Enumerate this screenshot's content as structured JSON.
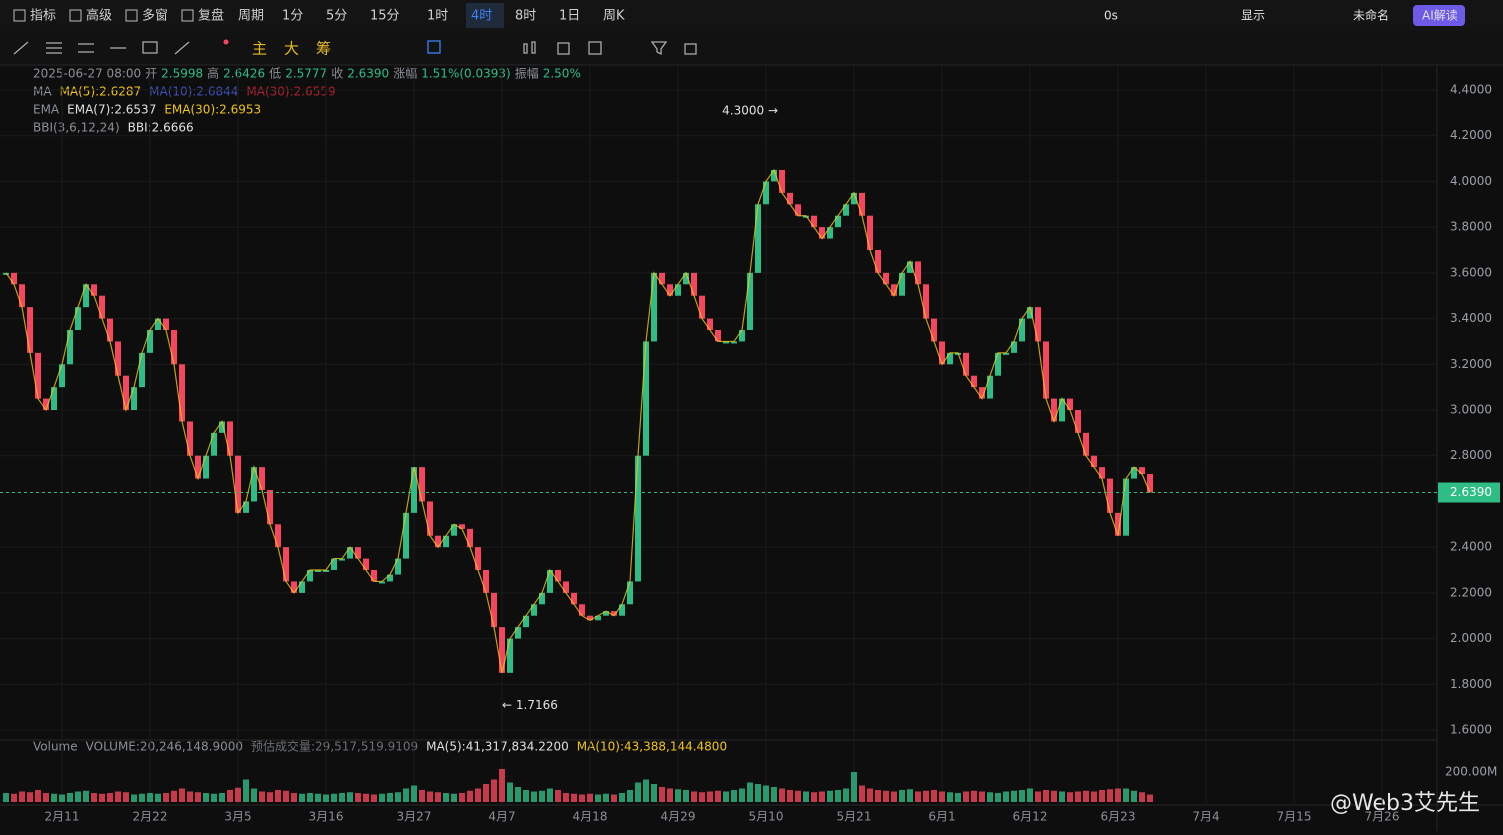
{
  "toolbar": {
    "left": [
      "指标",
      "高级",
      "多窗",
      "复盘",
      "周期",
      "1分",
      "5分",
      "15分",
      "1时",
      "4时",
      "8时",
      "1日",
      "周K"
    ],
    "active": "4时",
    "right": [
      "0s",
      "显示",
      "未命名",
      "AI解读"
    ]
  },
  "tools": {
    "main": [
      "主",
      "大",
      "筹"
    ]
  },
  "legend": {
    "ohlc": [
      "2025-06-27 08:00",
      "开",
      "2.5998",
      "高",
      "2.6426",
      "低",
      "2.5777",
      "收",
      "2.6390",
      "涨幅",
      "1.51%(0.0393)",
      "振幅",
      "2.50%"
    ],
    "ma": [
      "MA",
      "MA(5):2.6287",
      "MA(10):2.6844",
      "MA(30):2.6559"
    ],
    "ema": [
      "EMA",
      "EMA(7):2.6537",
      "EMA(30):2.6953"
    ],
    "bbi": [
      "BBI(3,6,12,24)",
      "BBI:2.6666"
    ],
    "volume": [
      "Volume",
      "VOLUME:20,246,148.9000",
      "预估成交量:29,517,519.9109",
      "MA(5):41,317,834.2200",
      "MA(10):43,388,144.4800"
    ]
  },
  "watermark": "@Web3艾先生",
  "chart_data": {
    "type": "candle-line",
    "categories": [
      null,
      null,
      null,
      null,
      null,
      null,
      null,
      "2月11",
      null,
      null,
      null,
      null,
      null,
      null,
      null,
      null,
      null,
      null,
      "2月22",
      null,
      null,
      null,
      null,
      null,
      null,
      null,
      null,
      null,
      null,
      "3月5",
      null,
      null,
      null,
      null,
      null,
      null,
      null,
      null,
      null,
      null,
      "3月16",
      null,
      null,
      null,
      null,
      null,
      null,
      null,
      null,
      null,
      null,
      "3月27",
      null,
      null,
      null,
      null,
      null,
      null,
      null,
      null,
      null,
      null,
      "4月7",
      null,
      null,
      null,
      null,
      null,
      null,
      null,
      null,
      null,
      null,
      "4月18",
      null,
      null,
      null,
      null,
      null,
      null,
      null,
      null,
      null,
      null,
      "4月29",
      null,
      null,
      null,
      null,
      null,
      null,
      null,
      null,
      null,
      null,
      "5月10",
      null,
      null,
      null,
      null,
      null,
      null,
      null,
      null,
      null,
      null,
      "5月21",
      null,
      null,
      null,
      null,
      null,
      null,
      null,
      null,
      null,
      null,
      "6月1",
      null,
      null,
      null,
      null,
      null,
      null,
      null,
      null,
      null,
      null,
      "6月12",
      null,
      null,
      null,
      null,
      null,
      null,
      null,
      null,
      null,
      null,
      "6月23",
      null,
      null,
      null,
      null,
      null,
      null,
      null,
      null,
      null,
      null,
      "7月4",
      null,
      null,
      null,
      null,
      null,
      null,
      null,
      null,
      null,
      null,
      "7月15",
      null,
      null,
      null,
      null,
      null,
      null,
      null,
      null,
      null,
      null,
      "7月26"
    ],
    "values": [
      3.6,
      3.55,
      3.45,
      3.25,
      3.05,
      3.0,
      3.1,
      3.2,
      3.35,
      3.45,
      3.55,
      3.5,
      3.4,
      3.3,
      3.15,
      3.0,
      3.1,
      3.25,
      3.35,
      3.4,
      3.35,
      3.2,
      2.95,
      2.8,
      2.7,
      2.8,
      2.9,
      2.95,
      2.8,
      2.55,
      2.6,
      2.75,
      2.65,
      2.5,
      2.4,
      2.25,
      2.2,
      2.25,
      2.3,
      2.3,
      2.3,
      2.35,
      2.35,
      2.4,
      2.35,
      2.3,
      2.25,
      2.25,
      2.28,
      2.35,
      2.55,
      2.75,
      2.6,
      2.45,
      2.4,
      2.45,
      2.5,
      2.48,
      2.4,
      2.3,
      2.2,
      2.05,
      1.85,
      2.0,
      2.05,
      2.1,
      2.15,
      2.2,
      2.3,
      2.25,
      2.2,
      2.15,
      2.1,
      2.08,
      2.1,
      2.12,
      2.1,
      2.15,
      2.25,
      2.8,
      3.3,
      3.6,
      3.55,
      3.5,
      3.55,
      3.6,
      3.5,
      3.4,
      3.35,
      3.3,
      3.3,
      3.3,
      3.35,
      3.6,
      3.9,
      4.0,
      4.05,
      3.95,
      3.9,
      3.85,
      3.85,
      3.8,
      3.75,
      3.8,
      3.85,
      3.9,
      3.95,
      3.85,
      3.7,
      3.6,
      3.55,
      3.5,
      3.6,
      3.65,
      3.55,
      3.4,
      3.3,
      3.2,
      3.25,
      3.25,
      3.15,
      3.1,
      3.05,
      3.15,
      3.25,
      3.25,
      3.3,
      3.4,
      3.45,
      3.3,
      3.05,
      2.95,
      3.05,
      3.0,
      2.9,
      2.8,
      2.75,
      2.7,
      2.55,
      2.45,
      2.7,
      2.75,
      2.72,
      2.639,
      null,
      null,
      null,
      null,
      null,
      null,
      null,
      null,
      null,
      null,
      null,
      null,
      null,
      null,
      null,
      null,
      null,
      null,
      null,
      null,
      null,
      null,
      null,
      null,
      null,
      null,
      null,
      null,
      null
    ],
    "volume": [
      60,
      55,
      70,
      65,
      80,
      60,
      55,
      50,
      60,
      70,
      75,
      60,
      55,
      60,
      70,
      65,
      50,
      55,
      60,
      55,
      60,
      75,
      90,
      70,
      65,
      60,
      55,
      60,
      80,
      95,
      150,
      90,
      70,
      65,
      80,
      75,
      60,
      55,
      60,
      55,
      50,
      55,
      60,
      65,
      60,
      55,
      50,
      55,
      60,
      65,
      90,
      110,
      80,
      70,
      65,
      60,
      55,
      60,
      75,
      90,
      120,
      150,
      220,
      130,
      100,
      80,
      70,
      75,
      90,
      80,
      60,
      55,
      50,
      55,
      50,
      55,
      50,
      60,
      80,
      130,
      150,
      120,
      100,
      90,
      85,
      80,
      70,
      65,
      70,
      75,
      70,
      80,
      90,
      130,
      120,
      110,
      100,
      90,
      80,
      75,
      70,
      65,
      70,
      75,
      80,
      90,
      200,
      110,
      90,
      80,
      75,
      70,
      80,
      85,
      70,
      75,
      80,
      70,
      65,
      60,
      70,
      75,
      70,
      65,
      60,
      70,
      75,
      80,
      90,
      70,
      80,
      75,
      70,
      65,
      70,
      75,
      70,
      80,
      85,
      90,
      90,
      75,
      65,
      50,
      null,
      null,
      null,
      null,
      null,
      null,
      null,
      null,
      null,
      null,
      null,
      null,
      null,
      null,
      null,
      null,
      null,
      null,
      null,
      null,
      null,
      null,
      null,
      null,
      null,
      null,
      null,
      null,
      null
    ],
    "up_color": "#2ebd85",
    "down_color": "#f6465d",
    "ylim": [
      1.6,
      4.4
    ],
    "yticks": [
      {
        "value": 4.4,
        "label": "4.4000"
      },
      {
        "value": 4.2,
        "label": "4.2000"
      },
      {
        "value": 4.0,
        "label": "4.0000"
      },
      {
        "value": 3.8,
        "label": "3.8000"
      },
      {
        "value": 3.6,
        "label": "3.6000"
      },
      {
        "value": 3.4,
        "label": "3.4000"
      },
      {
        "value": 3.2,
        "label": "3.2000"
      },
      {
        "value": 3.0,
        "label": "3.0000"
      },
      {
        "value": 2.8,
        "label": "2.8000"
      },
      {
        "value": 2.4,
        "label": "2.4000"
      },
      {
        "value": 2.2,
        "label": "2.2000"
      },
      {
        "value": 2.0,
        "label": "2.0000"
      },
      {
        "value": 1.8,
        "label": "1.8000"
      },
      {
        "value": 1.6,
        "label": "1.6000"
      }
    ],
    "vlim": [
      0,
      400
    ],
    "vticks": [
      {
        "value": 200,
        "label": "200.00M"
      }
    ],
    "last_price": {
      "value": 2.639,
      "label": "2.6390"
    },
    "annotations": [
      {
        "text": "4.3000 →",
        "value": 4.3,
        "anchor": "end",
        "index": 96
      },
      {
        "text": "← 1.7166",
        "value": 1.7166,
        "anchor": "start",
        "index": 62
      }
    ],
    "grid": true
  }
}
